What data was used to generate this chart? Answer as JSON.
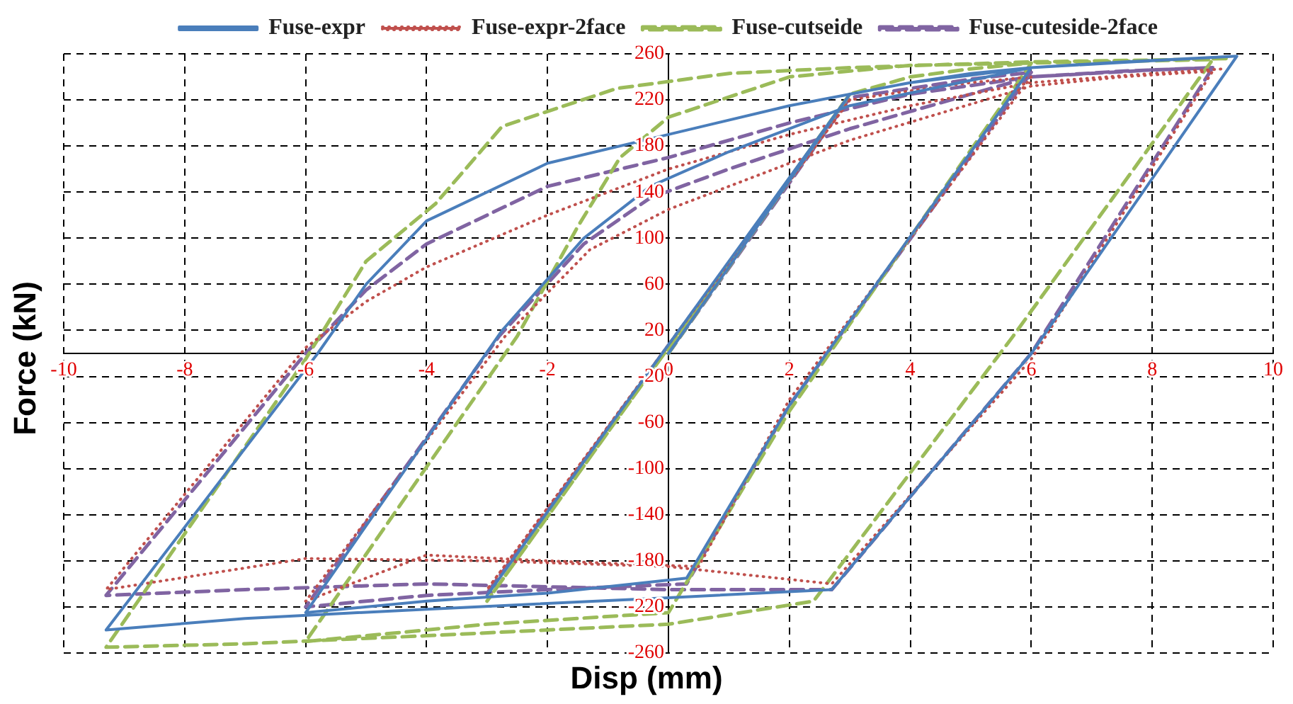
{
  "chart_data": {
    "type": "line",
    "xlabel": "Disp (mm)",
    "ylabel": "Force (kN)",
    "xlim": [
      -10,
      10
    ],
    "xticks": [
      -10,
      -8,
      -6,
      -4,
      -2,
      0,
      2,
      4,
      6,
      8,
      10
    ],
    "ylim": [
      -260,
      260
    ],
    "yticks": [
      -260,
      -220,
      -180,
      -140,
      -100,
      -60,
      -20,
      20,
      60,
      100,
      140,
      180,
      220,
      260
    ],
    "grid": true,
    "legend": "top",
    "marker": "none",
    "series": [
      {
        "name": "Fuse-expr",
        "color": "#4a7ebb",
        "line_style": "solid",
        "x": [
          0,
          3,
          -3,
          3,
          4,
          5,
          6,
          2,
          0.3,
          -2,
          -4,
          -6,
          -2.75,
          -1.4,
          -0.3,
          1,
          3,
          6,
          7.5,
          9.4,
          6,
          2.7,
          0,
          -4,
          -7,
          -9.3,
          -5.8,
          -5,
          -4,
          -2,
          0,
          2,
          4,
          6,
          8,
          9.4
        ],
        "values": [
          0,
          225,
          -210,
          225,
          235,
          243,
          248,
          -45,
          -195,
          -208,
          -215,
          -225,
          20,
          100,
          145,
          175,
          215,
          248,
          253,
          258,
          0,
          -205,
          -212,
          -222,
          -230,
          -240,
          0,
          60,
          115,
          165,
          190,
          215,
          235,
          248,
          254,
          258
        ]
      },
      {
        "name": "Fuse-expr-2face",
        "color": "#c0504d",
        "line_style": "dotted",
        "x": [
          3,
          -3,
          3,
          4,
          5,
          6,
          2,
          0.5,
          -2,
          -4,
          -6,
          -2.7,
          -1.3,
          0,
          1.5,
          3,
          6,
          7.5,
          9,
          6,
          2.7,
          0,
          -3,
          -6,
          -9.3,
          -6,
          -5,
          -4,
          -2,
          0,
          2,
          4,
          6,
          8,
          9.2
        ],
        "values": [
          220,
          -205,
          220,
          228,
          235,
          240,
          -40,
          -185,
          -180,
          -175,
          -215,
          15,
          90,
          125,
          155,
          185,
          232,
          240,
          245,
          -5,
          -200,
          -185,
          -180,
          -178,
          -205,
          5,
          45,
          75,
          120,
          160,
          190,
          215,
          235,
          243,
          247
        ]
      },
      {
        "name": "Fuse-cutseide",
        "color": "#9bbb59",
        "line_style": "dashed",
        "x": [
          0,
          3,
          -3,
          3,
          4,
          5,
          6,
          2,
          0,
          -3,
          -6,
          -2.5,
          -1.5,
          -0.8,
          0,
          2,
          4,
          6,
          8,
          9,
          5.7,
          2.4,
          0,
          -4,
          -7,
          -9.3,
          -6,
          -5,
          -3.85,
          -2.75,
          -0.85,
          1,
          3,
          6,
          8.5,
          9.3
        ],
        "values": [
          0,
          225,
          -215,
          225,
          240,
          247,
          252,
          -50,
          -225,
          -235,
          -250,
          15,
          110,
          170,
          205,
          240,
          250,
          252,
          254,
          255,
          15,
          -215,
          -235,
          -245,
          -252,
          -255,
          -5,
          80,
          130,
          197,
          230,
          243,
          248,
          253,
          255,
          256
        ]
      },
      {
        "name": "Fuse-cuteside-2face",
        "color": "#8064a2",
        "line_style": "dashed",
        "x": [
          0,
          3,
          -3,
          3,
          4,
          5,
          6,
          2,
          0.3,
          -2,
          -4,
          -6,
          -2.8,
          -1.4,
          -0.3,
          1,
          3,
          6,
          7.5,
          9,
          6,
          2.7,
          0,
          -4,
          -7,
          -9.3,
          -6,
          -5,
          -4,
          -2,
          0,
          2,
          4,
          6,
          8,
          9
        ],
        "values": [
          0,
          222,
          -208,
          222,
          230,
          238,
          244,
          -45,
          -200,
          -205,
          -210,
          -220,
          15,
          95,
          135,
          160,
          195,
          240,
          245,
          248,
          0,
          -205,
          -205,
          -200,
          -205,
          -210,
          0,
          55,
          95,
          145,
          170,
          200,
          225,
          240,
          246,
          248
        ]
      }
    ]
  }
}
